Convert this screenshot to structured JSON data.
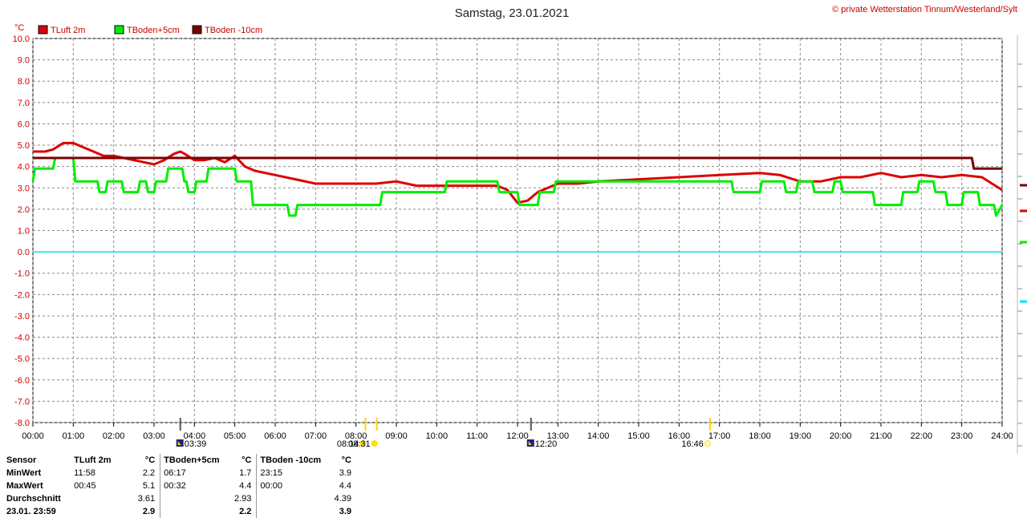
{
  "title": "Samstag, 23.01.2021",
  "copyright": "© private Wetterstation Tinnum/Westerland/Sylt",
  "unit_label": "°C",
  "legend": [
    {
      "label": "TLuft 2m",
      "color": "#dd0000"
    },
    {
      "label": "TBoden+5cm",
      "color": "#00ee00"
    },
    {
      "label": "TBoden -10cm",
      "color": "#7a0000"
    }
  ],
  "sun_events": [
    {
      "time": "08:14",
      "kind": "sunrise"
    },
    {
      "time": "03:39",
      "kind": "moonrise"
    },
    {
      "time": "08:31",
      "kind": "solar-noon-marker"
    },
    {
      "time": "12:20",
      "kind": "moonset"
    },
    {
      "time": "16:46",
      "kind": "sunset"
    }
  ],
  "chart_data": {
    "type": "line",
    "x_unit": "hours",
    "xlim": [
      0,
      24
    ],
    "ylim": [
      -8,
      10
    ],
    "x_ticks": [
      "00:00",
      "01:00",
      "02:00",
      "03:00",
      "04:00",
      "05:00",
      "06:00",
      "07:00",
      "08:00",
      "09:00",
      "10:00",
      "11:00",
      "12:00",
      "13:00",
      "14:00",
      "15:00",
      "16:00",
      "17:00",
      "18:00",
      "19:00",
      "20:00",
      "21:00",
      "22:00",
      "23:00",
      "24:00"
    ],
    "y_ticks": [
      "10.0",
      "9.0",
      "8.0",
      "7.0",
      "6.0",
      "5.0",
      "4.0",
      "3.0",
      "2.0",
      "1.0",
      "0.0",
      "-1.0",
      "-2.0",
      "-3.0",
      "-4.0",
      "-5.0",
      "-6.0",
      "-7.0",
      "-8.0"
    ],
    "grid": true,
    "zero_line_color": "#00e5ee",
    "series": [
      {
        "name": "TLuft 2m",
        "color": "#dd0000",
        "x": [
          0,
          0.3,
          0.5,
          0.75,
          1.0,
          1.25,
          1.5,
          1.75,
          2.0,
          2.25,
          2.5,
          2.75,
          3.0,
          3.25,
          3.5,
          3.65,
          3.75,
          4.0,
          4.25,
          4.5,
          4.75,
          5.0,
          5.25,
          5.5,
          6.0,
          6.5,
          7.0,
          7.5,
          8.0,
          8.5,
          9.0,
          9.5,
          10.0,
          11.0,
          11.5,
          11.75,
          12.0,
          12.25,
          12.5,
          13.0,
          13.5,
          14.0,
          15.0,
          16.0,
          17.0,
          18.0,
          18.5,
          19.0,
          19.5,
          20.0,
          20.5,
          21.0,
          21.5,
          22.0,
          22.5,
          23.0,
          23.5,
          23.75,
          24.0
        ],
        "y": [
          4.7,
          4.7,
          4.8,
          5.1,
          5.1,
          4.9,
          4.7,
          4.5,
          4.5,
          4.4,
          4.3,
          4.2,
          4.1,
          4.3,
          4.6,
          4.7,
          4.6,
          4.3,
          4.3,
          4.4,
          4.2,
          4.5,
          4.0,
          3.8,
          3.6,
          3.4,
          3.2,
          3.2,
          3.2,
          3.2,
          3.3,
          3.1,
          3.1,
          3.1,
          3.1,
          2.9,
          2.3,
          2.4,
          2.8,
          3.2,
          3.2,
          3.3,
          3.4,
          3.5,
          3.6,
          3.7,
          3.6,
          3.3,
          3.3,
          3.5,
          3.5,
          3.7,
          3.5,
          3.6,
          3.5,
          3.6,
          3.5,
          3.2,
          2.9
        ]
      },
      {
        "name": "TBoden+5cm",
        "color": "#00ee00",
        "x": [
          0,
          0.05,
          0.5,
          0.55,
          1.0,
          1.05,
          1.6,
          1.65,
          1.8,
          1.85,
          2.2,
          2.25,
          2.6,
          2.65,
          2.8,
          2.85,
          3.0,
          3.05,
          3.3,
          3.35,
          3.7,
          3.75,
          3.8,
          3.85,
          4.0,
          4.05,
          4.3,
          4.35,
          5.0,
          5.05,
          5.4,
          5.45,
          6.3,
          6.35,
          6.5,
          6.55,
          7.0,
          7.05,
          8.6,
          8.65,
          10.2,
          10.25,
          11.5,
          11.55,
          12.0,
          12.05,
          12.5,
          12.55,
          12.9,
          12.95,
          17.3,
          17.35,
          18.0,
          18.05,
          18.6,
          18.65,
          18.9,
          18.95,
          19.3,
          19.35,
          19.8,
          19.85,
          20.0,
          20.05,
          20.8,
          20.85,
          21.5,
          21.55,
          21.9,
          21.95,
          22.3,
          22.35,
          22.6,
          22.65,
          23.0,
          23.05,
          23.4,
          23.45,
          23.8,
          23.85,
          24.0
        ],
        "y": [
          3.3,
          3.9,
          3.9,
          4.4,
          4.4,
          3.3,
          3.3,
          2.8,
          2.8,
          3.3,
          3.3,
          2.8,
          2.8,
          3.3,
          3.3,
          2.8,
          2.8,
          3.3,
          3.3,
          3.9,
          3.9,
          3.3,
          3.3,
          2.8,
          2.8,
          3.3,
          3.3,
          3.9,
          3.9,
          3.3,
          3.3,
          2.2,
          2.2,
          1.7,
          1.7,
          2.2,
          2.2,
          2.2,
          2.2,
          2.8,
          2.8,
          3.3,
          3.3,
          2.8,
          2.8,
          2.2,
          2.2,
          2.8,
          2.8,
          3.3,
          3.3,
          2.8,
          2.8,
          3.3,
          3.3,
          2.8,
          2.8,
          3.3,
          3.3,
          2.8,
          2.8,
          3.3,
          3.3,
          2.8,
          2.8,
          2.2,
          2.2,
          2.8,
          2.8,
          3.3,
          3.3,
          2.8,
          2.8,
          2.2,
          2.2,
          2.8,
          2.8,
          2.2,
          2.2,
          1.7,
          2.2
        ]
      },
      {
        "name": "TBoden -10cm",
        "color": "#7a0000",
        "x": [
          0,
          23.25,
          23.3,
          24.0
        ],
        "y": [
          4.4,
          4.4,
          3.9,
          3.9
        ]
      },
      {
        "name": "0 °C",
        "color": "#00e5ee",
        "x": [
          0,
          24
        ],
        "y": [
          0,
          0
        ]
      }
    ]
  },
  "stats": {
    "headers": [
      "Sensor",
      "TLuft 2m",
      "°C",
      "TBoden+5cm",
      "°C",
      "TBoden -10cm",
      "°C"
    ],
    "rows": [
      {
        "label": "MinWert",
        "cells": [
          "11:58",
          "2.2",
          "06:17",
          "1.7",
          "23:15",
          "3.9"
        ]
      },
      {
        "label": "MaxWert",
        "cells": [
          "00:45",
          "5.1",
          "00:32",
          "4.4",
          "00:00",
          "4.4"
        ]
      },
      {
        "label": "Durchschnitt",
        "cells": [
          "",
          "3.61",
          "",
          "2.93",
          "",
          "4.39"
        ]
      },
      {
        "label": "23.01. 23:59",
        "cells": [
          "",
          "2.9",
          "",
          "2.2",
          "",
          "3.9"
        ]
      }
    ]
  },
  "right_markers": [
    {
      "series": "TBoden -10cm",
      "color": "#7a0000"
    },
    {
      "series": "TLuft 2m",
      "color": "#dd0000"
    },
    {
      "series": "TBoden+5cm",
      "color": "#00ee00"
    },
    {
      "series": "0 °C",
      "color": "#00e5ee"
    }
  ]
}
